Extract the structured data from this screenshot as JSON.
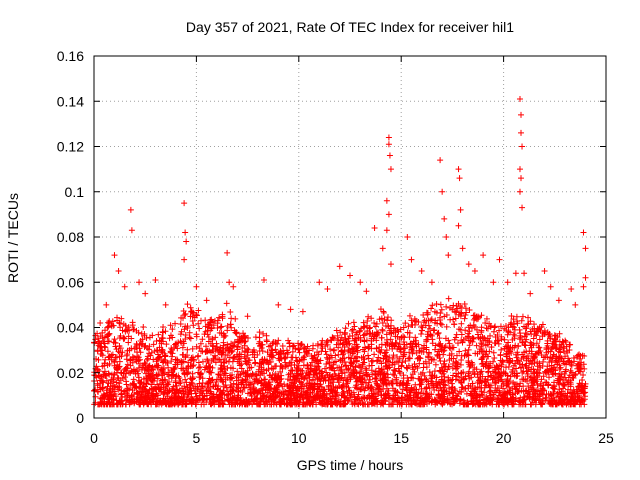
{
  "chart_data": {
    "type": "scatter",
    "title": "Day 357 of 2021, Rate Of TEC Index for receiver hil1",
    "xlabel": "GPS time / hours",
    "ylabel": "ROTI / TECUs",
    "xlim": [
      0,
      25
    ],
    "ylim": [
      0,
      0.16
    ],
    "xticks": [
      "0",
      "5",
      "10",
      "15",
      "20",
      "25"
    ],
    "yticks": [
      "0",
      "0.02",
      "0.04",
      "0.06",
      "0.08",
      "0.1",
      "0.12",
      "0.14",
      "0.16"
    ],
    "grid": true,
    "marker": "plus",
    "color": "#ff0000",
    "series": [
      {
        "name": "hil1",
        "baseline_envelope": [
          [
            0.0,
            0.035
          ],
          [
            0.5,
            0.04
          ],
          [
            1.0,
            0.045
          ],
          [
            1.5,
            0.042
          ],
          [
            2.0,
            0.04
          ],
          [
            2.5,
            0.038
          ],
          [
            3.0,
            0.036
          ],
          [
            3.5,
            0.04
          ],
          [
            4.0,
            0.042
          ],
          [
            4.5,
            0.05
          ],
          [
            5.0,
            0.048
          ],
          [
            5.5,
            0.045
          ],
          [
            6.0,
            0.044
          ],
          [
            6.5,
            0.05
          ],
          [
            7.0,
            0.04
          ],
          [
            7.5,
            0.036
          ],
          [
            8.0,
            0.038
          ],
          [
            8.5,
            0.036
          ],
          [
            9.0,
            0.034
          ],
          [
            9.5,
            0.033
          ],
          [
            10.0,
            0.032
          ],
          [
            10.5,
            0.03
          ],
          [
            11.0,
            0.033
          ],
          [
            11.5,
            0.035
          ],
          [
            12.0,
            0.04
          ],
          [
            12.5,
            0.042
          ],
          [
            13.0,
            0.04
          ],
          [
            13.5,
            0.045
          ],
          [
            14.0,
            0.05
          ],
          [
            14.5,
            0.045
          ],
          [
            15.0,
            0.042
          ],
          [
            15.5,
            0.044
          ],
          [
            16.0,
            0.045
          ],
          [
            16.5,
            0.05
          ],
          [
            17.0,
            0.05
          ],
          [
            17.5,
            0.052
          ],
          [
            18.0,
            0.05
          ],
          [
            18.5,
            0.048
          ],
          [
            19.0,
            0.045
          ],
          [
            19.5,
            0.042
          ],
          [
            20.0,
            0.04
          ],
          [
            20.5,
            0.045
          ],
          [
            21.0,
            0.045
          ],
          [
            21.5,
            0.043
          ],
          [
            22.0,
            0.04
          ],
          [
            22.5,
            0.038
          ],
          [
            23.0,
            0.035
          ],
          [
            23.5,
            0.03
          ],
          [
            24.0,
            0.028
          ]
        ],
        "baseline_floor": 0.006,
        "spikes": [
          [
            0.3,
            0.042
          ],
          [
            0.6,
            0.05
          ],
          [
            1.0,
            0.072
          ],
          [
            1.2,
            0.065
          ],
          [
            1.5,
            0.058
          ],
          [
            1.8,
            0.092
          ],
          [
            1.85,
            0.083
          ],
          [
            2.2,
            0.06
          ],
          [
            2.5,
            0.055
          ],
          [
            3.0,
            0.061
          ],
          [
            3.5,
            0.05
          ],
          [
            4.4,
            0.095
          ],
          [
            4.45,
            0.082
          ],
          [
            4.5,
            0.078
          ],
          [
            4.4,
            0.07
          ],
          [
            5.0,
            0.058
          ],
          [
            5.5,
            0.052
          ],
          [
            6.5,
            0.073
          ],
          [
            6.6,
            0.06
          ],
          [
            6.8,
            0.058
          ],
          [
            7.5,
            0.045
          ],
          [
            8.3,
            0.061
          ],
          [
            9.0,
            0.05
          ],
          [
            9.6,
            0.048
          ],
          [
            10.2,
            0.047
          ],
          [
            11.0,
            0.06
          ],
          [
            11.4,
            0.057
          ],
          [
            12.0,
            0.067
          ],
          [
            12.5,
            0.063
          ],
          [
            13.0,
            0.06
          ],
          [
            13.3,
            0.056
          ],
          [
            13.7,
            0.084
          ],
          [
            14.1,
            0.075
          ],
          [
            14.3,
            0.096
          ],
          [
            14.4,
            0.124
          ],
          [
            14.4,
            0.121
          ],
          [
            14.45,
            0.116
          ],
          [
            14.5,
            0.11
          ],
          [
            14.4,
            0.09
          ],
          [
            14.3,
            0.083
          ],
          [
            14.5,
            0.068
          ],
          [
            15.3,
            0.08
          ],
          [
            15.5,
            0.07
          ],
          [
            16.0,
            0.065
          ],
          [
            16.5,
            0.06
          ],
          [
            16.9,
            0.114
          ],
          [
            17.0,
            0.1
          ],
          [
            17.1,
            0.088
          ],
          [
            17.2,
            0.08
          ],
          [
            17.3,
            0.072
          ],
          [
            17.8,
            0.11
          ],
          [
            17.85,
            0.106
          ],
          [
            17.9,
            0.092
          ],
          [
            17.8,
            0.085
          ],
          [
            18.0,
            0.075
          ],
          [
            18.3,
            0.068
          ],
          [
            18.6,
            0.065
          ],
          [
            19.0,
            0.072
          ],
          [
            19.5,
            0.06
          ],
          [
            19.8,
            0.07
          ],
          [
            20.2,
            0.06
          ],
          [
            20.6,
            0.064
          ],
          [
            20.8,
            0.141
          ],
          [
            20.85,
            0.134
          ],
          [
            20.85,
            0.126
          ],
          [
            20.9,
            0.12
          ],
          [
            20.8,
            0.11
          ],
          [
            20.85,
            0.106
          ],
          [
            20.8,
            0.1
          ],
          [
            20.9,
            0.093
          ],
          [
            21.0,
            0.064
          ],
          [
            21.3,
            0.055
          ],
          [
            22.0,
            0.065
          ],
          [
            22.3,
            0.058
          ],
          [
            22.7,
            0.052
          ],
          [
            23.3,
            0.057
          ],
          [
            23.5,
            0.05
          ],
          [
            23.9,
            0.082
          ],
          [
            24.0,
            0.075
          ],
          [
            24.0,
            0.062
          ],
          [
            23.9,
            0.058
          ]
        ]
      }
    ]
  }
}
